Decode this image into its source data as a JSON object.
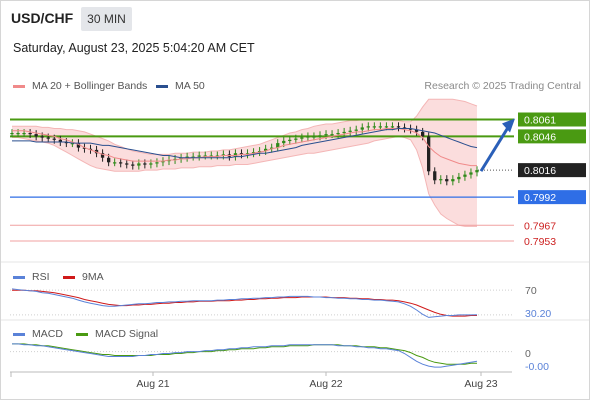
{
  "header": {
    "symbol": "USD/CHF",
    "timeframe": "30 MIN",
    "datetime": "Saturday, August 23, 2025 5:04:20 AM CET"
  },
  "main_legend": [
    {
      "label": "MA 20 + Bollinger Bands",
      "color": "#f08a8a"
    },
    {
      "label": "MA 50",
      "color": "#2a4f8f"
    }
  ],
  "credit": "Research © 2025 Trading Central",
  "price_levels": [
    {
      "value": "0.8061",
      "role": "resistance-green",
      "color": "#4a9a12"
    },
    {
      "value": "0.8046",
      "role": "resistance-green",
      "color": "#4a9a12"
    },
    {
      "value": "0.8016",
      "role": "current-price",
      "color": "#222222"
    },
    {
      "value": "0.7992",
      "role": "pivot",
      "color": "#2f6ee6"
    },
    {
      "value": "0.7967",
      "role": "support-red",
      "color": "#cc1f1f"
    },
    {
      "value": "0.7953",
      "role": "support-red",
      "color": "#cc1f1f"
    }
  ],
  "rsi_panel": {
    "legend": [
      {
        "label": "RSI",
        "color": "#5a82d8"
      },
      {
        "label": "9MA",
        "color": "#d01a1a"
      }
    ],
    "level_label": "70",
    "value_label": "30.20"
  },
  "macd_panel": {
    "legend": [
      {
        "label": "MACD",
        "color": "#5a82d8"
      },
      {
        "label": "MACD Signal",
        "color": "#4a9a12"
      }
    ],
    "level_label": "0",
    "value_label": "-0.00"
  },
  "x_axis": [
    "Aug 21",
    "Aug 22",
    "Aug 23"
  ],
  "colors": {
    "bullish": "#2f8a1a",
    "bearish": "#222222",
    "band_fill": "#fbd9d9",
    "ma50": "#2a4f8f",
    "arrow": "#2a5fb8"
  },
  "chart_data": {
    "type": "line",
    "title": "USD/CHF",
    "close": [
      0.8049,
      0.8049,
      0.8049,
      0.8048,
      0.8046,
      0.8045,
      0.8044,
      0.8043,
      0.8041,
      0.804,
      0.804,
      0.8036,
      0.8035,
      0.8034,
      0.8031,
      0.8027,
      0.8023,
      0.8023,
      0.8022,
      0.8021,
      0.802,
      0.8022,
      0.8021,
      0.8022,
      0.8023,
      0.8024,
      0.8025,
      0.8026,
      0.8027,
      0.8028,
      0.8028,
      0.8029,
      0.8029,
      0.8029,
      0.8029,
      0.803,
      0.8028,
      0.8031,
      0.803,
      0.8031,
      0.8032,
      0.8033,
      0.8035,
      0.8036,
      0.804,
      0.8042,
      0.8043,
      0.8044,
      0.8045,
      0.8046,
      0.8046,
      0.8047,
      0.8048,
      0.8048,
      0.8049,
      0.805,
      0.8051,
      0.8052,
      0.8054,
      0.8055,
      0.8055,
      0.8055,
      0.8055,
      0.8055,
      0.8054,
      0.8053,
      0.8052,
      0.805,
      0.8046,
      0.8015,
      0.8007,
      0.8008,
      0.8006,
      0.8008,
      0.801,
      0.8012,
      0.8014,
      0.8016
    ],
    "ma20": [
      0.8051,
      0.8051,
      0.8051,
      0.805,
      0.8049,
      0.8048,
      0.8047,
      0.8046,
      0.8044,
      0.8043,
      0.8041,
      0.8039,
      0.8036,
      0.8034,
      0.8032,
      0.803,
      0.8029,
      0.8027,
      0.8026,
      0.8025,
      0.8024,
      0.8024,
      0.8024,
      0.8024,
      0.8024,
      0.8024,
      0.8025,
      0.8025,
      0.8026,
      0.8026,
      0.8027,
      0.8027,
      0.8028,
      0.8028,
      0.8028,
      0.8029,
      0.8029,
      0.8029,
      0.803,
      0.803,
      0.8031,
      0.8032,
      0.8033,
      0.8035,
      0.8036,
      0.8038,
      0.8039,
      0.804,
      0.8041,
      0.8042,
      0.8043,
      0.8044,
      0.8045,
      0.8046,
      0.8047,
      0.8048,
      0.8049,
      0.805,
      0.805,
      0.8051,
      0.8052,
      0.8052,
      0.8053,
      0.8053,
      0.8053,
      0.8052,
      0.8051,
      0.8049,
      0.8045,
      0.8037,
      0.8032,
      0.8028,
      0.8026,
      0.8024,
      0.8022,
      0.8021,
      0.802,
      0.802
    ],
    "ma50": [
      0.8042,
      0.8042,
      0.8042,
      0.8042,
      0.8041,
      0.8041,
      0.8041,
      0.8041,
      0.8041,
      0.8041,
      0.804,
      0.804,
      0.804,
      0.804,
      0.8039,
      0.8038,
      0.8038,
      0.8037,
      0.8036,
      0.8035,
      0.8034,
      0.8033,
      0.8032,
      0.8031,
      0.803,
      0.8029,
      0.8029,
      0.8028,
      0.8027,
      0.8027,
      0.8027,
      0.8027,
      0.8027,
      0.8027,
      0.8027,
      0.8027,
      0.8027,
      0.8028,
      0.8028,
      0.8029,
      0.803,
      0.8031,
      0.8031,
      0.8032,
      0.8033,
      0.8034,
      0.8035,
      0.8036,
      0.8038,
      0.8039,
      0.804,
      0.8041,
      0.8042,
      0.8043,
      0.8044,
      0.8045,
      0.8046,
      0.8047,
      0.8048,
      0.8049,
      0.805,
      0.8051,
      0.8052,
      0.8052,
      0.8053,
      0.8053,
      0.8053,
      0.8052,
      0.8051,
      0.805,
      0.8049,
      0.8047,
      0.8045,
      0.8043,
      0.8041,
      0.8039,
      0.8037,
      0.8036
    ],
    "bb_upper": [
      0.8055,
      0.8055,
      0.8055,
      0.8055,
      0.8055,
      0.8054,
      0.8054,
      0.8053,
      0.8053,
      0.8052,
      0.8052,
      0.8051,
      0.805,
      0.8048,
      0.8046,
      0.8044,
      0.8042,
      0.8039,
      0.8037,
      0.8035,
      0.8033,
      0.8032,
      0.8031,
      0.803,
      0.803,
      0.803,
      0.803,
      0.8031,
      0.8031,
      0.8031,
      0.8032,
      0.8032,
      0.8032,
      0.8033,
      0.8033,
      0.8034,
      0.8034,
      0.8035,
      0.8036,
      0.8037,
      0.8038,
      0.8039,
      0.8041,
      0.8043,
      0.8045,
      0.8047,
      0.8049,
      0.805,
      0.8052,
      0.8053,
      0.8055,
      0.8056,
      0.8057,
      0.8057,
      0.8058,
      0.8059,
      0.806,
      0.806,
      0.8061,
      0.8061,
      0.8061,
      0.8061,
      0.8061,
      0.806,
      0.806,
      0.8059,
      0.8059,
      0.8064,
      0.8072,
      0.8079,
      0.8079,
      0.8079,
      0.8079,
      0.8079,
      0.8078,
      0.8077,
      0.8075,
      0.8073
    ],
    "bb_lower": [
      0.8045,
      0.8045,
      0.8044,
      0.8043,
      0.8042,
      0.8041,
      0.804,
      0.8038,
      0.8035,
      0.8032,
      0.8029,
      0.8026,
      0.8023,
      0.802,
      0.8018,
      0.8017,
      0.8016,
      0.8015,
      0.8015,
      0.8015,
      0.8015,
      0.8015,
      0.8016,
      0.8016,
      0.8016,
      0.8017,
      0.8017,
      0.8017,
      0.8018,
      0.8018,
      0.8018,
      0.8019,
      0.8019,
      0.8019,
      0.802,
      0.802,
      0.802,
      0.8021,
      0.8021,
      0.8021,
      0.8022,
      0.8023,
      0.8024,
      0.8025,
      0.8026,
      0.8027,
      0.8028,
      0.8029,
      0.803,
      0.8031,
      0.8031,
      0.8032,
      0.8033,
      0.8034,
      0.8035,
      0.8036,
      0.8037,
      0.8038,
      0.8039,
      0.804,
      0.8042,
      0.8043,
      0.8044,
      0.8045,
      0.8046,
      0.8045,
      0.8043,
      0.8034,
      0.8018,
      0.7995,
      0.7985,
      0.7977,
      0.7973,
      0.797,
      0.7967,
      0.7966,
      0.7966,
      0.7966
    ],
    "rsi": [
      72,
      71,
      70,
      69,
      68,
      66,
      65,
      63,
      61,
      59,
      57,
      54,
      51,
      49,
      47,
      45,
      44,
      44,
      45,
      46,
      47,
      48,
      48,
      49,
      50,
      50,
      51,
      51,
      52,
      52,
      53,
      53,
      53,
      53,
      54,
      54,
      55,
      55,
      56,
      56,
      57,
      57,
      58,
      58,
      59,
      59,
      60,
      60,
      60,
      60,
      59,
      59,
      58,
      58,
      57,
      57,
      56,
      56,
      55,
      55,
      54,
      54,
      53,
      52,
      51,
      48,
      44,
      38,
      31,
      26,
      27,
      28,
      29,
      29,
      30,
      30,
      30,
      30.2
    ],
    "rsi_ma": [
      70,
      70,
      70,
      69,
      69,
      68,
      67,
      66,
      64,
      62,
      60,
      58,
      55,
      53,
      51,
      49,
      47,
      46,
      45,
      45,
      46,
      46,
      47,
      47,
      48,
      49,
      49,
      50,
      50,
      51,
      51,
      52,
      52,
      52,
      53,
      53,
      53,
      54,
      54,
      55,
      55,
      56,
      56,
      57,
      57,
      58,
      58,
      58,
      59,
      59,
      59,
      59,
      59,
      58,
      58,
      58,
      57,
      57,
      56,
      56,
      55,
      55,
      54,
      54,
      53,
      51,
      49,
      46,
      42,
      38,
      34,
      31,
      29,
      28,
      28,
      28,
      29,
      29
    ],
    "macd": [
      0.0008,
      0.0008,
      0.0007,
      0.0007,
      0.0006,
      0.0006,
      0.0005,
      0.0004,
      0.0003,
      0.0002,
      0.0001,
      0,
      -0.0001,
      -0.0002,
      -0.0003,
      -0.0004,
      -0.0005,
      -0.0005,
      -0.0005,
      -0.0005,
      -0.0005,
      -0.0004,
      -0.0004,
      -0.0003,
      -0.0003,
      -0.0002,
      -0.0002,
      -0.0001,
      -0.0001,
      0,
      0,
      0,
      0.0001,
      0.0001,
      0.0002,
      0.0002,
      0.0003,
      0.0003,
      0.0004,
      0.0004,
      0.0005,
      0.0005,
      0.0005,
      0.0006,
      0.0006,
      0.0006,
      0.0007,
      0.0007,
      0.0007,
      0.0007,
      0.0007,
      0.0007,
      0.0007,
      0.0007,
      0.0006,
      0.0006,
      0.0006,
      0.0005,
      0.0005,
      0.0004,
      0.0004,
      0.0003,
      0.0003,
      0.0002,
      0.0001,
      -0.0002,
      -0.0006,
      -0.001,
      -0.0013,
      -0.0015,
      -0.0016,
      -0.0016,
      -0.0015,
      -0.0014,
      -0.0013,
      -0.0012,
      -0.0011,
      -0.001
    ],
    "macd_signal": [
      0.0008,
      0.0008,
      0.0008,
      0.0007,
      0.0007,
      0.0006,
      0.0006,
      0.0005,
      0.0004,
      0.0003,
      0.0002,
      0.0001,
      0,
      -0.0001,
      -0.0002,
      -0.0003,
      -0.0003,
      -0.0004,
      -0.0004,
      -0.0004,
      -0.0004,
      -0.0004,
      -0.0004,
      -0.0004,
      -0.0003,
      -0.0003,
      -0.0003,
      -0.0002,
      -0.0002,
      -0.0001,
      -0.0001,
      0,
      0,
      0,
      0.0001,
      0.0001,
      0.0002,
      0.0002,
      0.0003,
      0.0003,
      0.0003,
      0.0004,
      0.0004,
      0.0005,
      0.0005,
      0.0005,
      0.0006,
      0.0006,
      0.0006,
      0.0006,
      0.0007,
      0.0007,
      0.0007,
      0.0007,
      0.0007,
      0.0006,
      0.0006,
      0.0006,
      0.0005,
      0.0005,
      0.0005,
      0.0004,
      0.0004,
      0.0003,
      0.0002,
      0.0001,
      -0.0001,
      -0.0004,
      -0.0006,
      -0.0009,
      -0.0011,
      -0.0012,
      -0.0013,
      -0.0013,
      -0.0013,
      -0.0013,
      -0.0012,
      -0.0012
    ],
    "ylim": [
      0.7945,
      0.8081
    ],
    "x_labels": [
      "Aug 21",
      "Aug 22",
      "Aug 23"
    ],
    "projection": {
      "from": 0.8016,
      "to": 0.8061
    },
    "grid": false
  }
}
